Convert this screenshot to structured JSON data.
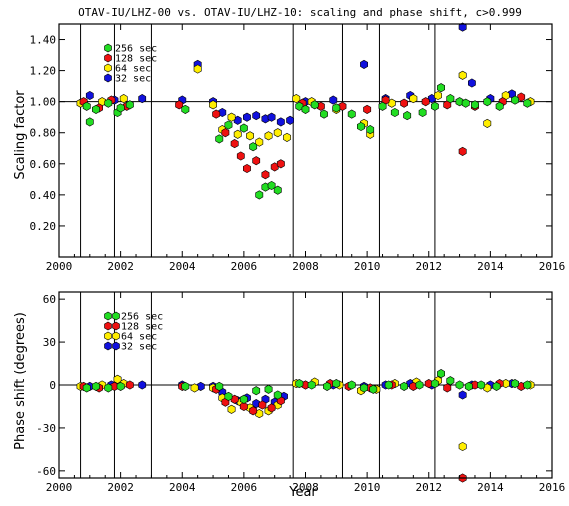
{
  "chart_data": [
    {
      "type": "scatter",
      "title": "OTAV-IU/LHZ-00 vs. OTAV-IU/LHZ-10: scaling and phase shift, c>0.999",
      "xlabel": "",
      "ylabel": "Scaling factor",
      "xlim": [
        2000,
        2016
      ],
      "ylim": [
        0.0,
        1.5
      ],
      "x_ticks": [
        "2000",
        "2002",
        "2004",
        "2006",
        "2008",
        "2010",
        "2012",
        "2014",
        "2016"
      ],
      "y_ticks": [
        "0.20",
        "0.40",
        "0.60",
        "0.80",
        "1.00",
        "1.20",
        "1.40"
      ],
      "reference_line": 1.0,
      "event_lines": [
        2000.7,
        2001.8,
        2003.0,
        2007.6,
        2009.2,
        2010.4,
        2012.2
      ],
      "legend_position": "top-left",
      "series": [
        {
          "name": "256 sec",
          "color": "#22dd22",
          "points": [
            [
              2000.9,
              0.97
            ],
            [
              2001.0,
              0.87
            ],
            [
              2001.2,
              0.95
            ],
            [
              2001.6,
              0.99
            ],
            [
              2001.9,
              0.93
            ],
            [
              2002.0,
              0.96
            ],
            [
              2002.3,
              0.98
            ],
            [
              2004.1,
              0.95
            ],
            [
              2005.2,
              0.76
            ],
            [
              2005.5,
              0.85
            ],
            [
              2006.0,
              0.83
            ],
            [
              2006.3,
              0.71
            ],
            [
              2006.5,
              0.4
            ],
            [
              2006.7,
              0.45
            ],
            [
              2006.9,
              0.46
            ],
            [
              2007.1,
              0.43
            ],
            [
              2007.8,
              0.97
            ],
            [
              2008.0,
              0.95
            ],
            [
              2008.3,
              0.98
            ],
            [
              2008.6,
              0.92
            ],
            [
              2009.0,
              0.96
            ],
            [
              2009.5,
              0.92
            ],
            [
              2009.8,
              0.84
            ],
            [
              2010.1,
              0.82
            ],
            [
              2010.5,
              0.97
            ],
            [
              2010.9,
              0.93
            ],
            [
              2011.3,
              0.91
            ],
            [
              2011.8,
              0.93
            ],
            [
              2012.2,
              0.97
            ],
            [
              2012.4,
              1.09
            ],
            [
              2012.7,
              1.02
            ],
            [
              2013.0,
              1.0
            ],
            [
              2013.2,
              0.99
            ],
            [
              2013.5,
              0.98
            ],
            [
              2013.9,
              1.0
            ],
            [
              2014.3,
              0.97
            ],
            [
              2014.8,
              1.01
            ],
            [
              2015.2,
              0.99
            ]
          ]
        },
        {
          "name": "128 sec",
          "color": "#ee1111",
          "points": [
            [
              2000.8,
              1.0
            ],
            [
              2001.3,
              0.96
            ],
            [
              2001.7,
              1.01
            ],
            [
              2002.2,
              0.97
            ],
            [
              2003.9,
              0.98
            ],
            [
              2005.1,
              0.92
            ],
            [
              2005.4,
              0.8
            ],
            [
              2005.7,
              0.73
            ],
            [
              2005.9,
              0.65
            ],
            [
              2006.1,
              0.57
            ],
            [
              2006.4,
              0.62
            ],
            [
              2006.7,
              0.53
            ],
            [
              2007.0,
              0.58
            ],
            [
              2007.2,
              0.6
            ],
            [
              2007.9,
              0.99
            ],
            [
              2008.5,
              0.97
            ],
            [
              2009.2,
              0.97
            ],
            [
              2010.0,
              0.95
            ],
            [
              2010.6,
              1.01
            ],
            [
              2011.2,
              0.99
            ],
            [
              2011.9,
              1.0
            ],
            [
              2012.6,
              0.98
            ],
            [
              2013.1,
              0.68
            ],
            [
              2013.5,
              0.97
            ],
            [
              2014.4,
              1.0
            ],
            [
              2015.0,
              1.03
            ]
          ]
        },
        {
          "name": "64 sec",
          "color": "#ffee00",
          "points": [
            [
              2000.7,
              0.99
            ],
            [
              2001.4,
              1.0
            ],
            [
              2002.1,
              1.02
            ],
            [
              2004.5,
              1.21
            ],
            [
              2005.0,
              0.98
            ],
            [
              2005.3,
              0.82
            ],
            [
              2005.6,
              0.9
            ],
            [
              2005.8,
              0.79
            ],
            [
              2006.2,
              0.78
            ],
            [
              2006.5,
              0.74
            ],
            [
              2006.8,
              0.78
            ],
            [
              2007.1,
              0.8
            ],
            [
              2007.4,
              0.77
            ],
            [
              2007.7,
              1.02
            ],
            [
              2008.2,
              1.0
            ],
            [
              2009.0,
              0.95
            ],
            [
              2009.9,
              0.86
            ],
            [
              2010.1,
              0.79
            ],
            [
              2010.8,
              0.99
            ],
            [
              2011.5,
              1.02
            ],
            [
              2012.3,
              1.04
            ],
            [
              2013.1,
              1.17
            ],
            [
              2013.9,
              0.86
            ],
            [
              2014.5,
              1.04
            ],
            [
              2015.3,
              1.0
            ]
          ]
        },
        {
          "name": "32 sec",
          "color": "#1111dd",
          "points": [
            [
              2001.0,
              1.04
            ],
            [
              2001.8,
              1.01
            ],
            [
              2002.7,
              1.02
            ],
            [
              2004.0,
              1.01
            ],
            [
              2004.5,
              1.24
            ],
            [
              2005.0,
              1.0
            ],
            [
              2005.3,
              0.93
            ],
            [
              2005.8,
              0.88
            ],
            [
              2006.1,
              0.9
            ],
            [
              2006.4,
              0.91
            ],
            [
              2006.7,
              0.89
            ],
            [
              2006.9,
              0.9
            ],
            [
              2007.2,
              0.87
            ],
            [
              2007.5,
              0.88
            ],
            [
              2008.0,
              1.0
            ],
            [
              2008.9,
              1.01
            ],
            [
              2009.9,
              1.24
            ],
            [
              2010.6,
              1.02
            ],
            [
              2011.4,
              1.04
            ],
            [
              2012.1,
              1.02
            ],
            [
              2013.1,
              1.48
            ],
            [
              2013.4,
              1.12
            ],
            [
              2014.0,
              1.02
            ],
            [
              2014.7,
              1.05
            ]
          ]
        }
      ]
    },
    {
      "type": "scatter",
      "title": "",
      "xlabel": "Year",
      "ylabel": "Phase shift (degrees)",
      "xlim": [
        2000,
        2016
      ],
      "ylim": [
        -65,
        65
      ],
      "x_ticks": [
        "2000",
        "2002",
        "2004",
        "2006",
        "2008",
        "2010",
        "2012",
        "2014",
        "2016"
      ],
      "y_ticks": [
        "-60",
        "-30",
        "0",
        "30",
        "60"
      ],
      "reference_line": 0,
      "event_lines": [
        2000.7,
        2001.8,
        2003.0,
        2007.6,
        2009.2,
        2010.4,
        2012.2
      ],
      "legend_position": "top-left",
      "series": [
        {
          "name": "256 sec",
          "color": "#22dd22",
          "points": [
            [
              2000.9,
              -2
            ],
            [
              2001.2,
              -1
            ],
            [
              2001.6,
              -2
            ],
            [
              2002.0,
              -1
            ],
            [
              2004.1,
              -1
            ],
            [
              2005.2,
              -1
            ],
            [
              2005.5,
              -8
            ],
            [
              2006.0,
              -10
            ],
            [
              2006.4,
              -4
            ],
            [
              2006.8,
              -3
            ],
            [
              2007.1,
              -7
            ],
            [
              2007.8,
              1
            ],
            [
              2008.2,
              0
            ],
            [
              2008.7,
              -1
            ],
            [
              2009.0,
              1
            ],
            [
              2009.5,
              0
            ],
            [
              2009.9,
              -2
            ],
            [
              2010.2,
              -3
            ],
            [
              2010.7,
              0
            ],
            [
              2011.2,
              -1
            ],
            [
              2011.7,
              0
            ],
            [
              2012.2,
              1
            ],
            [
              2012.4,
              8
            ],
            [
              2012.7,
              3
            ],
            [
              2013.0,
              0
            ],
            [
              2013.3,
              -1
            ],
            [
              2013.7,
              0
            ],
            [
              2014.2,
              -1
            ],
            [
              2014.8,
              1
            ],
            [
              2015.2,
              0
            ]
          ]
        },
        {
          "name": "128 sec",
          "color": "#ee1111",
          "points": [
            [
              2000.8,
              -1
            ],
            [
              2001.3,
              -2
            ],
            [
              2001.8,
              -1
            ],
            [
              2002.3,
              0
            ],
            [
              2004.0,
              -1
            ],
            [
              2005.1,
              -3
            ],
            [
              2005.4,
              -12
            ],
            [
              2005.7,
              -10
            ],
            [
              2006.0,
              -15
            ],
            [
              2006.3,
              -18
            ],
            [
              2006.6,
              -14
            ],
            [
              2006.9,
              -16
            ],
            [
              2007.2,
              -11
            ],
            [
              2008.0,
              0
            ],
            [
              2008.8,
              1
            ],
            [
              2009.4,
              -1
            ],
            [
              2010.1,
              -2
            ],
            [
              2010.8,
              0
            ],
            [
              2011.5,
              -1
            ],
            [
              2012.0,
              1
            ],
            [
              2012.6,
              -2
            ],
            [
              2013.1,
              -65
            ],
            [
              2013.5,
              0
            ],
            [
              2014.3,
              1
            ],
            [
              2015.0,
              -1
            ]
          ]
        },
        {
          "name": "64 sec",
          "color": "#ffee00",
          "points": [
            [
              2000.7,
              -1
            ],
            [
              2001.4,
              0
            ],
            [
              2001.9,
              4
            ],
            [
              2002.1,
              1
            ],
            [
              2004.4,
              -2
            ],
            [
              2005.0,
              -2
            ],
            [
              2005.3,
              -9
            ],
            [
              2005.6,
              -17
            ],
            [
              2005.9,
              -12
            ],
            [
              2006.2,
              -16
            ],
            [
              2006.5,
              -20
            ],
            [
              2006.8,
              -18
            ],
            [
              2007.1,
              -14
            ],
            [
              2007.7,
              1
            ],
            [
              2008.3,
              2
            ],
            [
              2009.1,
              0
            ],
            [
              2009.8,
              -4
            ],
            [
              2010.3,
              -3
            ],
            [
              2010.9,
              1
            ],
            [
              2011.6,
              2
            ],
            [
              2012.3,
              3
            ],
            [
              2013.1,
              -43
            ],
            [
              2013.9,
              -2
            ],
            [
              2014.5,
              1
            ],
            [
              2015.3,
              0
            ]
          ]
        },
        {
          "name": "32 sec",
          "color": "#1111dd",
          "points": [
            [
              2001.0,
              -1
            ],
            [
              2001.7,
              0
            ],
            [
              2002.7,
              0
            ],
            [
              2004.0,
              0
            ],
            [
              2004.6,
              -1
            ],
            [
              2005.0,
              -1
            ],
            [
              2005.3,
              -5
            ],
            [
              2005.8,
              -11
            ],
            [
              2006.1,
              -9
            ],
            [
              2006.4,
              -13
            ],
            [
              2006.7,
              -10
            ],
            [
              2007.0,
              -12
            ],
            [
              2007.3,
              -8
            ],
            [
              2008.0,
              0
            ],
            [
              2008.9,
              0
            ],
            [
              2009.9,
              -1
            ],
            [
              2010.6,
              0
            ],
            [
              2011.4,
              1
            ],
            [
              2012.1,
              0
            ],
            [
              2013.1,
              -7
            ],
            [
              2013.4,
              0
            ],
            [
              2014.0,
              0
            ],
            [
              2014.7,
              1
            ]
          ]
        }
      ]
    }
  ]
}
